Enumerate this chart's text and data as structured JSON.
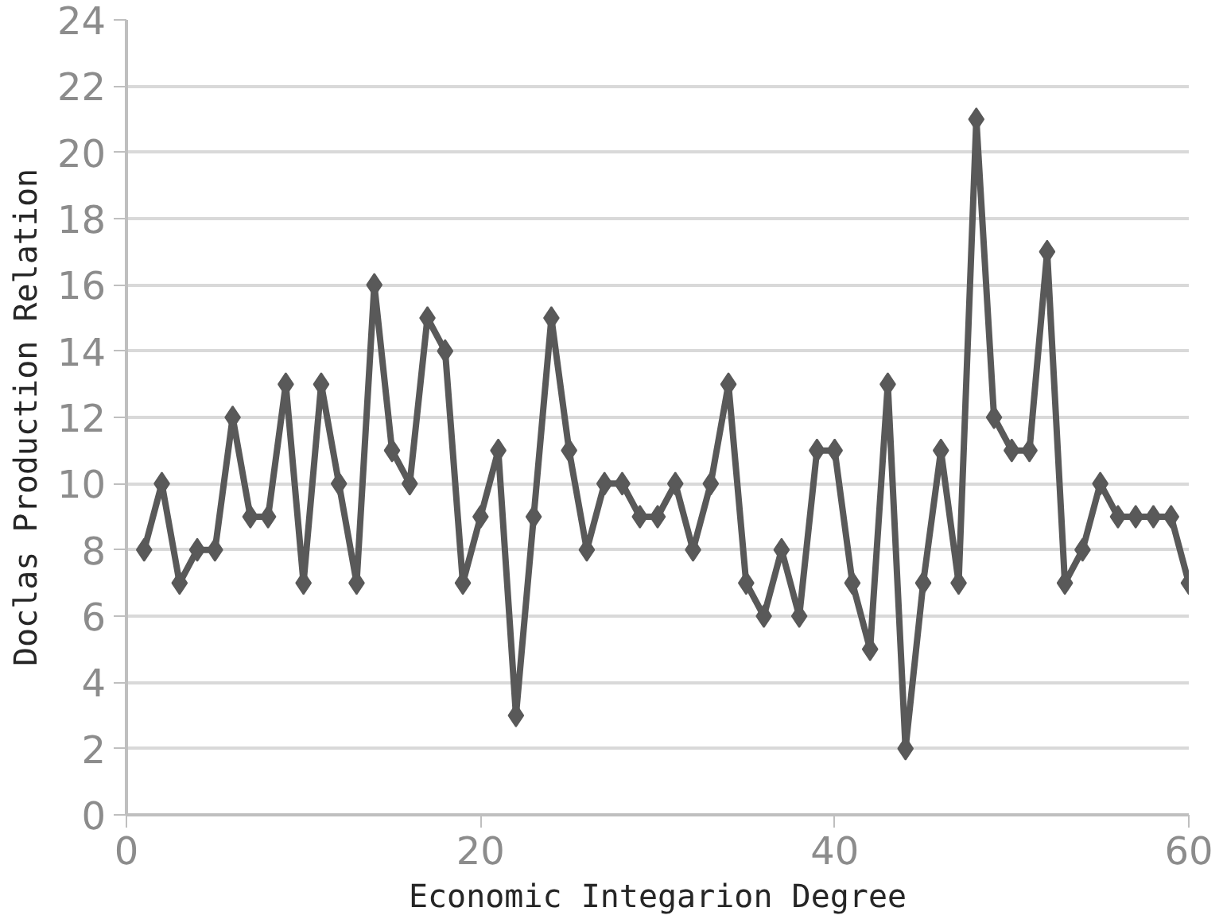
{
  "chart_data": {
    "type": "line",
    "xlabel": "Economic Integarion Degree",
    "ylabel": "Doclas Production Relation",
    "x": [
      1,
      2,
      3,
      4,
      5,
      6,
      7,
      8,
      9,
      10,
      11,
      12,
      13,
      14,
      15,
      16,
      17,
      18,
      19,
      20,
      21,
      22,
      23,
      24,
      25,
      26,
      27,
      28,
      29,
      30,
      31,
      32,
      33,
      34,
      35,
      36,
      37,
      38,
      39,
      40,
      41,
      42,
      43,
      44,
      45,
      46,
      47,
      48,
      49,
      50,
      51,
      52,
      53,
      54,
      55,
      56,
      57,
      58,
      59,
      60
    ],
    "series": [
      {
        "color": "#595959",
        "values": [
          8,
          10,
          7,
          8,
          8,
          12,
          9,
          9,
          13,
          7,
          13,
          10,
          7,
          16,
          11,
          10,
          15,
          14,
          7,
          9,
          11,
          3,
          9,
          15,
          11,
          8,
          10,
          10,
          9,
          9,
          10,
          8,
          10,
          13,
          7,
          6,
          8,
          6,
          11,
          11,
          7,
          5,
          13,
          2,
          7,
          11,
          7,
          21,
          12,
          11,
          11,
          17,
          7,
          8,
          10,
          9,
          9,
          9,
          9,
          7
        ]
      }
    ],
    "xlim": [
      0,
      60
    ],
    "xticks": [
      0,
      20,
      40,
      60
    ],
    "ylim": [
      0,
      24
    ],
    "yticks": [
      0,
      2,
      4,
      6,
      8,
      10,
      12,
      14,
      16,
      18,
      20,
      22,
      24
    ],
    "grid": "y",
    "marker": "diamond",
    "line_style": "solid"
  }
}
